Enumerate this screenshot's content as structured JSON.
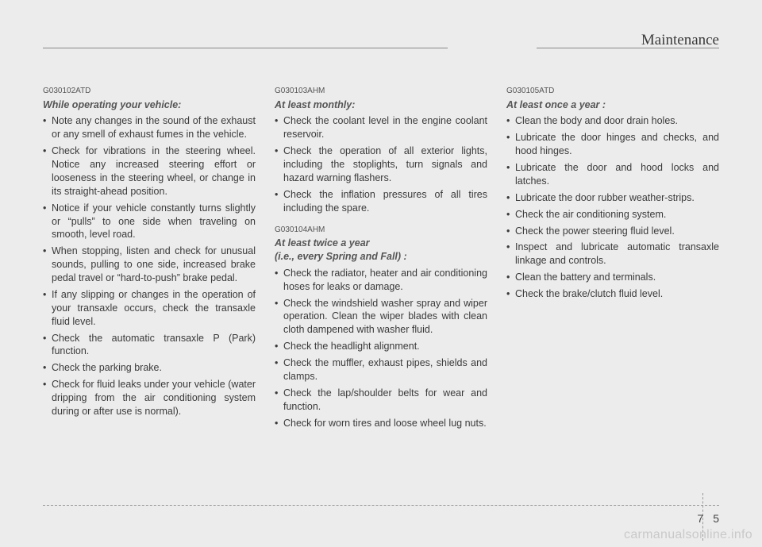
{
  "header": {
    "title": "Maintenance"
  },
  "col1": {
    "sec1": {
      "code": "G030102ATD",
      "subhead": "While operating your vehicle:",
      "items": [
        "Note any changes in the sound of the exhaust or any smell of exhaust fumes in the vehicle.",
        "Check for vibrations in the steering wheel. Notice any increased steering effort or looseness in the steering wheel, or change in its straight-ahead position.",
        "Notice if your vehicle constantly turns slightly or “pulls” to one side when traveling on smooth, level road.",
        "When stopping, listen and check for unusual sounds, pulling to one side, increased brake pedal travel or “hard-to-push” brake pedal.",
        "If any slipping or changes in the operation of your transaxle occurs, check the transaxle fluid level.",
        "Check the automatic transaxle P (Park) function.",
        "Check the parking brake.",
        "Check for fluid leaks under your vehicle (water dripping from the air conditioning system during or after use is normal)."
      ]
    }
  },
  "col2": {
    "sec1": {
      "code": "G030103AHM",
      "subhead": "At least monthly:",
      "items": [
        "Check the coolant level in the engine coolant reservoir.",
        "Check the operation of all exterior lights, including the stoplights, turn signals and hazard warning flashers.",
        "Check the inflation pressures of all tires including the spare."
      ]
    },
    "sec2": {
      "code": "G030104AHM",
      "subhead_l1": "At least twice a year",
      "subhead_l2": "(i.e., every Spring and Fall) :",
      "items": [
        "Check the radiator, heater and air conditioning hoses for leaks or damage.",
        "Check the windshield washer spray and wiper operation. Clean the wiper blades with clean cloth dampened with washer fluid.",
        "Check the headlight alignment.",
        "Check the muffler, exhaust pipes, shields and clamps.",
        "Check the lap/shoulder belts for wear and function.",
        "Check for worn tires and loose wheel lug nuts."
      ]
    }
  },
  "col3": {
    "sec1": {
      "code": "G030105ATD",
      "subhead": "At least once a year :",
      "items": [
        "Clean the body and door drain holes.",
        "Lubricate the door hinges and checks, and hood hinges.",
        "Lubricate the door and hood locks and latches.",
        "Lubricate the door rubber weather-strips.",
        "Check the air conditioning system.",
        "Check the power steering fluid level.",
        "Inspect and lubricate automatic transaxle linkage and controls.",
        "Clean the battery and terminals.",
        "Check the brake/clutch fluid level."
      ]
    }
  },
  "footer": {
    "page_left": "7",
    "page_right": "5",
    "watermark": "carmanualsonline.info"
  }
}
